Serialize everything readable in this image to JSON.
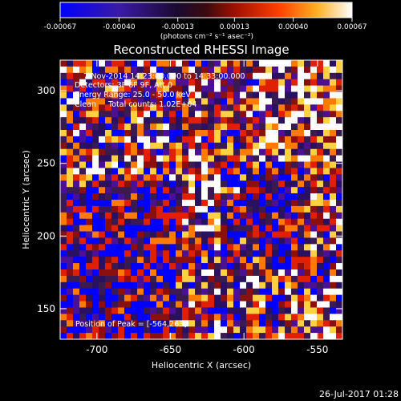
{
  "chart_data": {
    "type": "heatmap",
    "title": "Reconstructed RHESSI Image",
    "colorbar": {
      "tick_labels": [
        "-0.00067",
        "-0.00040",
        "-0.00013",
        "0.00013",
        "0.00040",
        "0.00067"
      ],
      "range": [
        -0.00067,
        0.00067
      ],
      "unit_label": "(photons cm⁻² s⁻¹ asec⁻²)"
    },
    "x_axis": {
      "label": "Heliocentric X (arcsec)",
      "range": [
        -725,
        -533
      ],
      "ticks": [
        -700,
        -650,
        -600,
        -550
      ],
      "tick_labels": [
        "-700",
        "-650",
        "-600",
        "-550"
      ]
    },
    "y_axis": {
      "label": "Heliocentric Y (arcsec)",
      "range": [
        129,
        321
      ],
      "ticks": [
        150,
        200,
        250,
        300
      ],
      "tick_labels": [
        "150",
        "200",
        "250",
        "300"
      ]
    },
    "annotations": [
      "7-Nov-2014 14:23:00.000 to 14:33:00.000",
      "Detectors: 3F 6F 9F, Att 0",
      "Energy Range: 25.0 - 50.0 keV",
      "Clean     Total counts: 1.02E+04",
      "Position of Peak = [-564,263]"
    ],
    "peak_position": [
      -564,
      263
    ],
    "grid": false,
    "colormap": [
      "#0000ff",
      "#4b1096",
      "#2a1060",
      "#3a1a50",
      "#8a1010",
      "#e02000",
      "#ff7a00",
      "#ffd040",
      "#ffffff"
    ]
  },
  "footer": {
    "timestamp": "26-Jul-2017 01:28"
  }
}
